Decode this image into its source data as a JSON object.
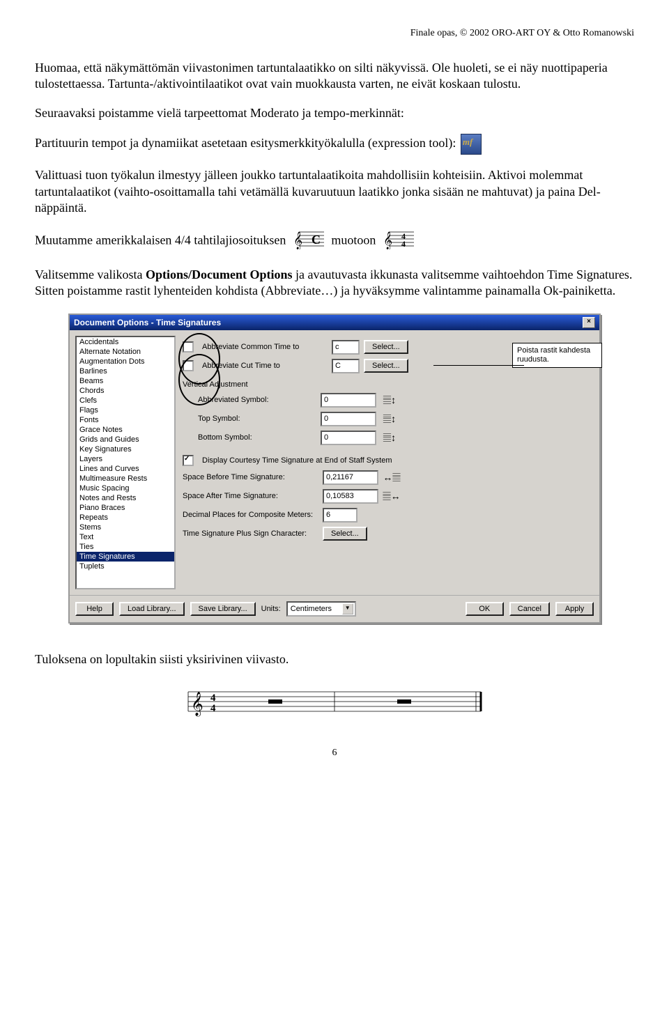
{
  "header": {
    "copyright": "Finale opas, © 2002 ORO-ART OY & Otto Romanowski"
  },
  "text": {
    "p1": "Huomaa, että näkymättömän viivastonimen tartuntalaatikko on silti näkyvissä. Ole huoleti, se ei näy nuottipaperia tulostettaessa. Tartunta-/aktivointilaatikot ovat vain muokkausta varten, ne eivät koskaan tulostu.",
    "p2": "Seuraavaksi poistamme vielä tarpeettomat Moderato ja tempo-merkinnät:",
    "p3a": "Partituurin tempot ja dynamiikat asetetaan esitysmerkkityökalulla (expression tool): ",
    "p4": "Valittuasi tuon työkalun ilmestyy jälleen joukko tartuntalaatikoita mahdollisiin kohteisiin. Aktivoi molemmat tartuntalaatikot (vaihto-osoittamalla tahi vetämällä kuvaruutuun laatikko jonka sisään ne mahtuvat) ja paina Del-näppäintä.",
    "p5a": "Muutamme amerikkalaisen 4/4 tahtilajiosoituksen",
    "p5b": "muotoon",
    "p6a": "Valitsemme valikosta ",
    "p6bold": "Options/Document Options",
    "p6b": " ja avautuvasta ikkunasta valitsemme vaihtoehdon Time Signatures. Sitten poistamme rastit lyhenteiden kohdista (Abbreviate…) ja hyväksymme valintamme painamalla Ok-painiketta.",
    "result": "Tuloksena on lopultakin siisti yksirivinen viivasto."
  },
  "dialog": {
    "title": "Document Options - Time Signatures",
    "annotation": "Poista rastit kahdesta ruudusta.",
    "list": [
      "Accidentals",
      "Alternate Notation",
      "Augmentation Dots",
      "Barlines",
      "Beams",
      "Chords",
      "Clefs",
      "Flags",
      "Fonts",
      "Grace Notes",
      "Grids and Guides",
      "Key Signatures",
      "Layers",
      "Lines and Curves",
      "Multimeasure Rests",
      "Music Spacing",
      "Notes and Rests",
      "Piano Braces",
      "Repeats",
      "Stems",
      "Text",
      "Ties",
      "Time Signatures",
      "Tuplets"
    ],
    "list_selected": "Time Signatures",
    "fields": {
      "abbr_common": {
        "label": "Abbreviate Common Time to",
        "value": "c",
        "btn": "Select..."
      },
      "abbr_cut": {
        "label": "Abbreviate Cut Time to",
        "value": "C",
        "btn": "Select..."
      },
      "vert_adj": "Vertical Adjustment",
      "abbr_sym": {
        "label": "Abbreviated Symbol:",
        "value": "0"
      },
      "top_sym": {
        "label": "Top Symbol:",
        "value": "0"
      },
      "bot_sym": {
        "label": "Bottom Symbol:",
        "value": "0"
      },
      "courtesy": "Display Courtesy Time Signature at End of Staff System",
      "space_before": {
        "label": "Space Before Time Signature:",
        "value": "0,21167"
      },
      "space_after": {
        "label": "Space After Time Signature:",
        "value": "0,10583"
      },
      "decimal": {
        "label": "Decimal Places for Composite Meters:",
        "value": "6"
      },
      "plus_sign": {
        "label": "Time Signature Plus Sign Character:",
        "btn": "Select..."
      }
    },
    "footer": {
      "help": "Help",
      "load": "Load Library...",
      "save": "Save Library...",
      "units_label": "Units:",
      "units_value": "Centimeters",
      "ok": "OK",
      "cancel": "Cancel",
      "apply": "Apply"
    }
  },
  "page_number": "6"
}
